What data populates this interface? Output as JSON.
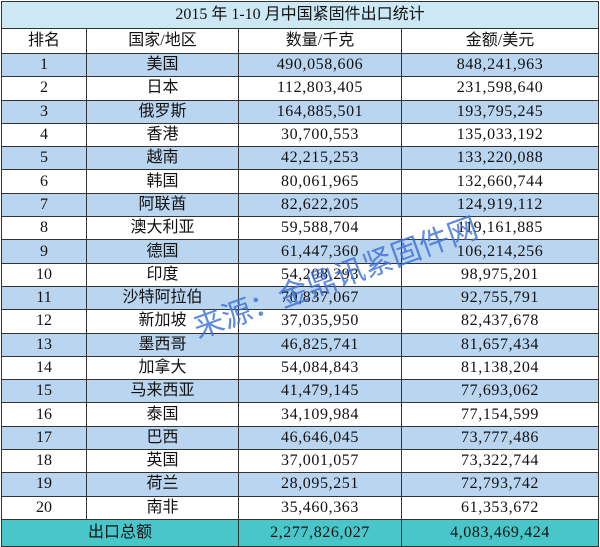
{
  "chart_data": {
    "type": "table",
    "title": "2015 年 1-10 月中国紧固件出口统计",
    "columns": [
      "排名",
      "国家/地区",
      "数量/千克",
      "金额/美元"
    ],
    "rows": [
      [
        "1",
        "美国",
        "490,058,606",
        "848,241,963"
      ],
      [
        "2",
        "日本",
        "112,803,405",
        "231,598,640"
      ],
      [
        "3",
        "俄罗斯",
        "164,885,501",
        "193,795,245"
      ],
      [
        "4",
        "香港",
        "30,700,553",
        "135,033,192"
      ],
      [
        "5",
        "越南",
        "42,215,253",
        "133,220,088"
      ],
      [
        "6",
        "韩国",
        "80,061,965",
        "132,660,744"
      ],
      [
        "7",
        "阿联酋",
        "82,622,205",
        "124,919,112"
      ],
      [
        "8",
        "澳大利亚",
        "59,588,704",
        "119,161,885"
      ],
      [
        "9",
        "德国",
        "61,447,360",
        "106,214,256"
      ],
      [
        "10",
        "印度",
        "54,208,293",
        "98,975,201"
      ],
      [
        "11",
        "沙特阿拉伯",
        "70,837,067",
        "92,755,791"
      ],
      [
        "12",
        "新加坡",
        "37,035,950",
        "82,437,678"
      ],
      [
        "13",
        "墨西哥",
        "46,825,741",
        "81,657,434"
      ],
      [
        "14",
        "加拿大",
        "54,084,843",
        "81,138,204"
      ],
      [
        "15",
        "马来西亚",
        "41,479,145",
        "77,693,062"
      ],
      [
        "16",
        "泰国",
        "34,109,984",
        "77,154,599"
      ],
      [
        "17",
        "巴西",
        "46,646,045",
        "73,777,486"
      ],
      [
        "18",
        "英国",
        "37,001,057",
        "73,322,744"
      ],
      [
        "19",
        "荷兰",
        "28,095,251",
        "72,793,742"
      ],
      [
        "20",
        "南非",
        "35,460,363",
        "61,353,672"
      ]
    ],
    "total": {
      "label": "出口总额",
      "quantity": "2,277,826,027",
      "amount": "4,083,469,424"
    }
  },
  "watermark": {
    "text": "来源：金鼎讯紧固件网"
  },
  "colors": {
    "title_row": "#cbe8f4",
    "striped_row": "#bad5ef",
    "total_row": "#49c6c9",
    "grid_line": "#333333",
    "watermark": "#3a6fd8"
  }
}
